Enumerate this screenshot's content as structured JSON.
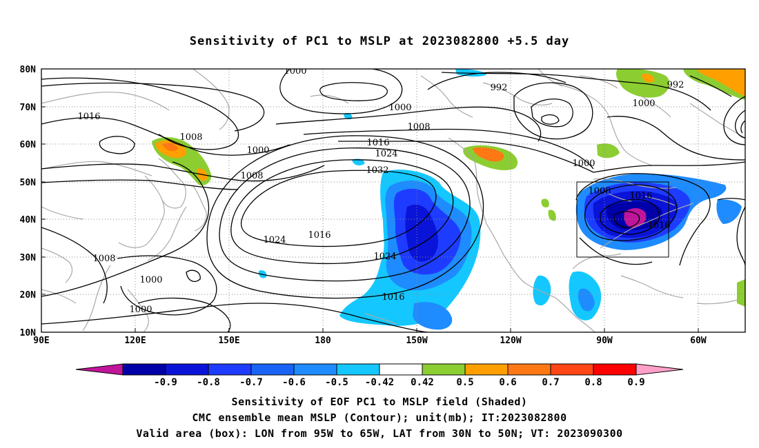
{
  "title": "Sensitivity of PC1 to MSLP at 2023082800 +5.5 day",
  "axes": {
    "lat_labels": [
      "80N",
      "70N",
      "60N",
      "50N",
      "40N",
      "30N",
      "20N",
      "10N"
    ],
    "lon_labels": [
      "90E",
      "120E",
      "150E",
      "180",
      "150W",
      "120W",
      "90W",
      "60W"
    ]
  },
  "contour_labels": [
    {
      "text": "1000"
    },
    {
      "text": "992"
    },
    {
      "text": "992"
    },
    {
      "text": "1016"
    },
    {
      "text": "1000"
    },
    {
      "text": "1000"
    },
    {
      "text": "1008"
    },
    {
      "text": "1008"
    },
    {
      "text": "1000"
    },
    {
      "text": "1016"
    },
    {
      "text": "1024"
    },
    {
      "text": "1008"
    },
    {
      "text": "1032"
    },
    {
      "text": "1000"
    },
    {
      "text": "1008"
    },
    {
      "text": "1016"
    },
    {
      "text": "1016"
    },
    {
      "text": "1024"
    },
    {
      "text": "1016"
    },
    {
      "text": "1024"
    },
    {
      "text": "1008"
    },
    {
      "text": "1000"
    },
    {
      "text": "1016"
    },
    {
      "text": "1000"
    }
  ],
  "colorbar": {
    "labels": [
      "-0.9",
      "-0.8",
      "-0.7",
      "-0.6",
      "-0.5",
      "-0.42",
      "0.42",
      "0.5",
      "0.6",
      "0.7",
      "0.8",
      "0.9"
    ],
    "colors": [
      "#c0149a",
      "#0000a8",
      "#0a14d8",
      "#1e3cff",
      "#1a64f5",
      "#1e8cff",
      "#14c8ff",
      "#ffffff",
      "#8ccd32",
      "#ffa000",
      "#ff7814",
      "#ff4614",
      "#ff0000",
      "#ffa0c8"
    ]
  },
  "footer": {
    "line1": "Sensitivity of EOF PC1 to MSLP field (Shaded)",
    "line2": "CMC ensemble mean MSLP (Contour); unit(mb); IT:2023082800",
    "line3": "Valid area (box): LON from 95W to 65W, LAT from 30N to 50N; VT: 2023090300"
  }
}
